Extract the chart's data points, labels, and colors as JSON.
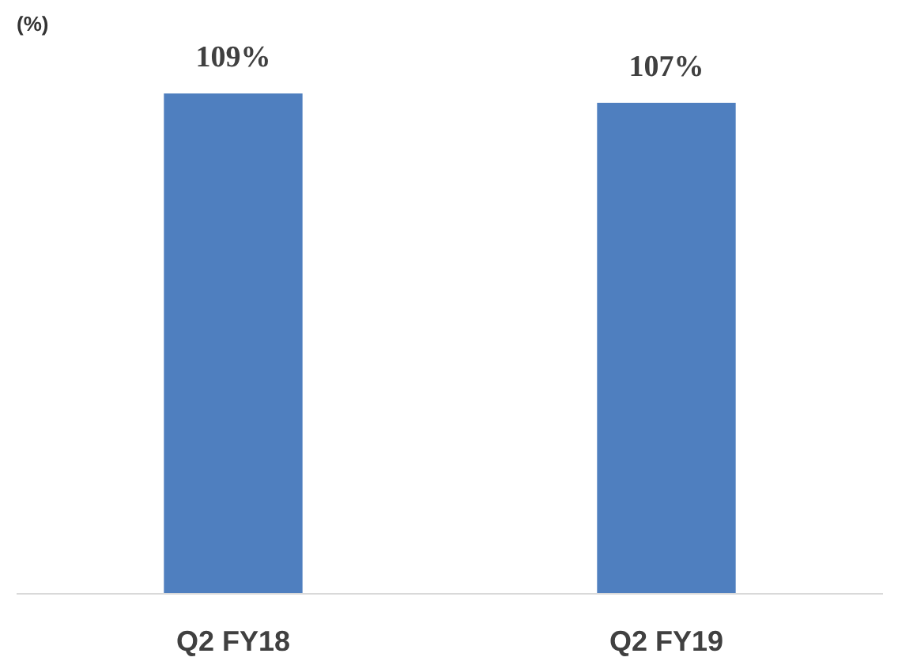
{
  "chart_data": {
    "type": "bar",
    "ylabel": "(%)",
    "categories": [
      "Q2 FY18",
      "Q2 FY19"
    ],
    "values": [
      109,
      107
    ],
    "value_labels": [
      "109%",
      "107%"
    ],
    "color": "#4f7fbf",
    "tick_labels": "x",
    "grid": false
  }
}
